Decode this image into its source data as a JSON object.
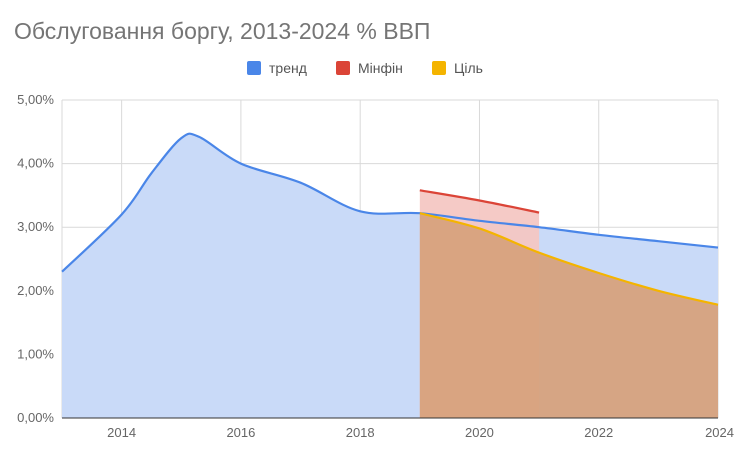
{
  "title": "Обслуговання боргу, 2013-2024 % ВВП",
  "legend": [
    {
      "name": "тренд",
      "color": "#4a86e8"
    },
    {
      "name": "Мінфін",
      "color": "#db4437"
    },
    {
      "name": "Ціль",
      "color": "#f4b400"
    }
  ],
  "chart_data": {
    "type": "area",
    "title": "Обслуговання боргу, 2013-2024 % ВВП",
    "xlabel": "",
    "ylabel": "",
    "xlim": [
      2013,
      2024
    ],
    "ylim": [
      0,
      5
    ],
    "x_ticks": [
      "2014",
      "2016",
      "2018",
      "2020",
      "2022",
      "2024"
    ],
    "y_ticks": [
      "0,00%",
      "1,00%",
      "2,00%",
      "3,00%",
      "4,00%",
      "5,00%"
    ],
    "grid": true,
    "legend_position": "top",
    "series": [
      {
        "name": "тренд",
        "color": "#4a86e8",
        "fill": "#c9daf8",
        "points": [
          [
            2013,
            2.3
          ],
          [
            2014,
            3.2
          ],
          [
            2014.5,
            3.85
          ],
          [
            2015,
            4.4
          ],
          [
            2015.3,
            4.42
          ],
          [
            2016,
            4.0
          ],
          [
            2017,
            3.7
          ],
          [
            2018,
            3.25
          ],
          [
            2019,
            3.22
          ],
          [
            2020,
            3.1
          ],
          [
            2021,
            3.0
          ],
          [
            2022,
            2.88
          ],
          [
            2023,
            2.78
          ],
          [
            2024,
            2.68
          ]
        ]
      },
      {
        "name": "Мінфін",
        "color": "#db4437",
        "fill": "#f4c7c3",
        "points": [
          [
            2019,
            3.58
          ],
          [
            2020,
            3.42
          ],
          [
            2021,
            3.23
          ]
        ]
      },
      {
        "name": "Ціль",
        "color": "#f4b400",
        "fill": "#d7a27d",
        "points": [
          [
            2019,
            3.22
          ],
          [
            2020,
            2.98
          ],
          [
            2021,
            2.6
          ],
          [
            2022,
            2.28
          ],
          [
            2023,
            2.0
          ],
          [
            2024,
            1.78
          ]
        ]
      }
    ]
  }
}
